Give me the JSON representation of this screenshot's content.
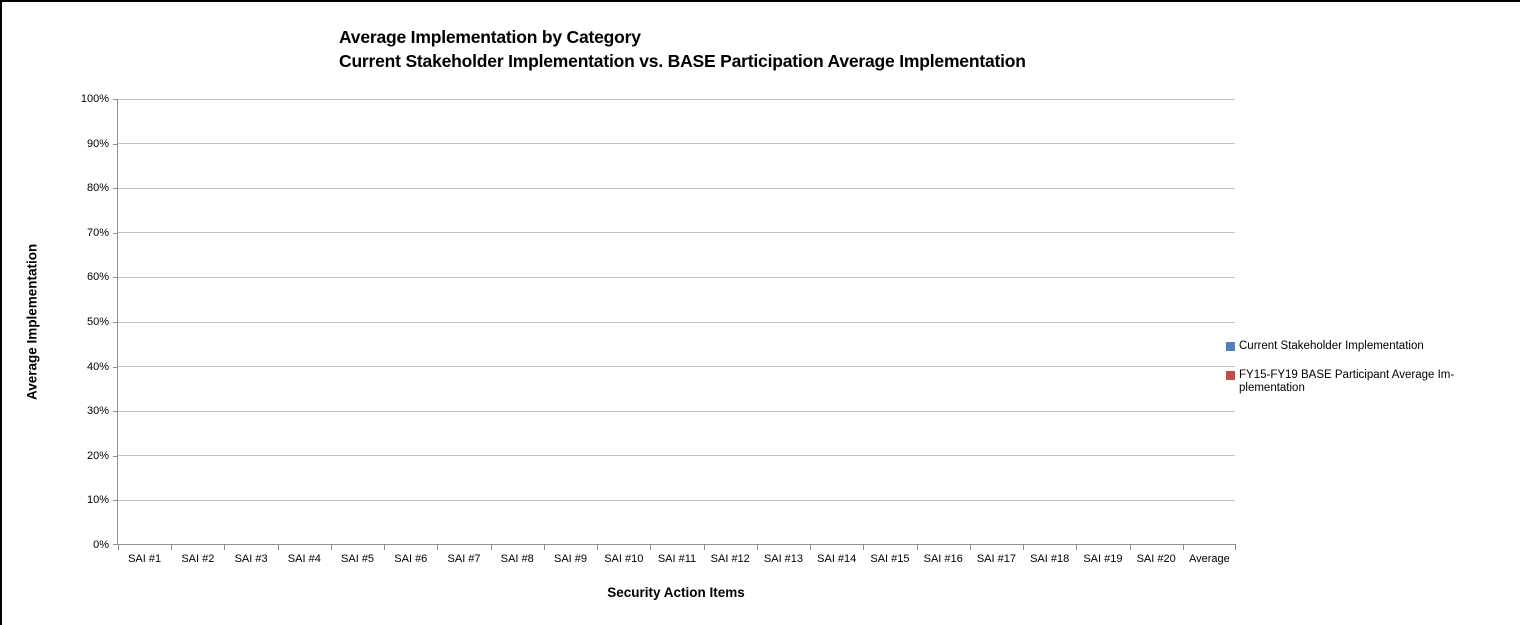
{
  "chart_data": {
    "type": "bar",
    "title": "Average Implementation by Category",
    "subtitle": "Current Stakeholder Implementation vs. BASE Participation Average Implementation",
    "xlabel": "Security Action Items",
    "ylabel": "Average Implementation",
    "categories": [
      "SAI #1",
      "SAI #2",
      "SAI #3",
      "SAI #4",
      "SAI #5",
      "SAI #6",
      "SAI #7",
      "SAI #8",
      "SAI #9",
      "SAI #10",
      "SAI #11",
      "SAI #12",
      "SAI #13",
      "SAI #14",
      "SAI #15",
      "SAI #16",
      "SAI #17",
      "SAI #18",
      "SAI #19",
      "SAI #20",
      "Average"
    ],
    "series": [
      {
        "name": "Current Stakeholder Implementation",
        "color": "#4F81BD",
        "legend_lines": [
          "Current Stakeholder Implementation"
        ],
        "values": [
          0,
          0,
          0,
          0,
          0,
          0,
          0,
          0,
          0,
          0,
          0,
          0,
          0,
          0,
          0,
          0,
          0,
          0,
          0,
          0,
          0
        ]
      },
      {
        "name": "FY15-FY19 BASE Participant Average Implementation",
        "color": "#C0504D",
        "legend_lines": [
          "FY15-FY19 BASE Participant Average Im-",
          "plementation"
        ],
        "values": [
          0,
          0,
          0,
          0,
          0,
          0,
          0,
          0,
          0,
          0,
          0,
          0,
          0,
          0,
          0,
          0,
          0,
          0,
          0,
          0,
          0
        ]
      }
    ],
    "ylim": [
      0,
      100
    ],
    "yticks": [
      0,
      10,
      20,
      30,
      40,
      50,
      60,
      70,
      80,
      90,
      100
    ],
    "ytick_suffix": "%",
    "grid": true,
    "legend_position": "right"
  }
}
